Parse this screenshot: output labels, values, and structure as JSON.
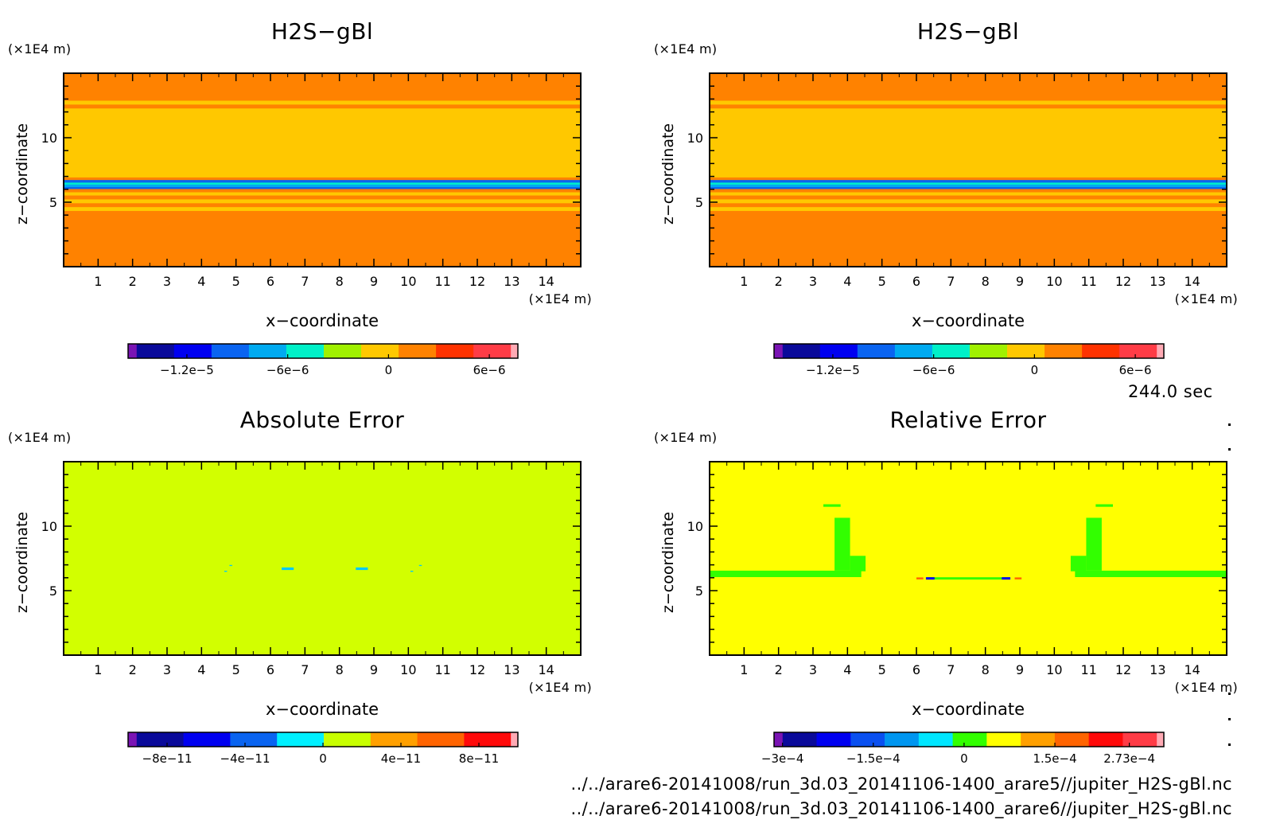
{
  "time_label": "244.0 sec",
  "footer": {
    "file1": "../../arare6-20141008/run_3d.03_20141106-1400_arare5//jupiter_H2S-gBl.nc",
    "file2": "../../arare6-20141008/run_3d.03_20141106-1400_arare6//jupiter_H2S-gBl.nc"
  },
  "chart_data": [
    {
      "type": "heatmap",
      "title": "H2S−gBl",
      "xlabel": "x−coordinate",
      "ylabel": "z−coordinate",
      "x_unit": "(×1E4 m)",
      "y_unit": "(×1E4 m)",
      "xlim": [
        0,
        15
      ],
      "ylim": [
        0,
        15
      ],
      "x_ticks": [
        1,
        2,
        3,
        4,
        5,
        6,
        7,
        8,
        9,
        10,
        11,
        12,
        13,
        14
      ],
      "y_ticks": [
        5,
        10
      ],
      "colorbar": {
        "colors": [
          "#7a14b4",
          "#0a0a9a",
          "#0000f0",
          "#0a64f0",
          "#00aaf0",
          "#00f0c8",
          "#a0f000",
          "#ffc800",
          "#ff8200",
          "#ff3200",
          "#ff3c46",
          "#ffaab4"
        ],
        "tick_labels": [
          "−1.2e−5",
          "−6e−6",
          "0",
          "6e−6"
        ],
        "tick_values": [
          -1.2e-05,
          -6e-06,
          0,
          6e-06
        ],
        "range": [
          -1.55e-05,
          7.7e-06
        ]
      },
      "bands": [
        {
          "z": [
            0,
            4.35
          ],
          "color": "#ff8200"
        },
        {
          "z": [
            4.35,
            4.65
          ],
          "color": "#ffc800"
        },
        {
          "z": [
            4.65,
            4.95
          ],
          "color": "#ff8200"
        },
        {
          "z": [
            4.95,
            5.25
          ],
          "color": "#ffc800"
        },
        {
          "z": [
            5.25,
            5.55
          ],
          "color": "#ff8200"
        },
        {
          "z": [
            5.55,
            5.8
          ],
          "color": "#ffc800"
        },
        {
          "z": [
            5.8,
            6.05
          ],
          "color": "#ff8200"
        },
        {
          "z": [
            6.05,
            6.2
          ],
          "color": "#0a64f0"
        },
        {
          "z": [
            6.2,
            6.4
          ],
          "color": "#00aaf0"
        },
        {
          "z": [
            6.4,
            6.55
          ],
          "color": "#00f0c8"
        },
        {
          "z": [
            6.55,
            6.75
          ],
          "color": "#0a64f0"
        },
        {
          "z": [
            6.75,
            6.95
          ],
          "color": "#ff8200"
        },
        {
          "z": [
            6.95,
            12.3
          ],
          "color": "#ffc800"
        },
        {
          "z": [
            12.3,
            12.6
          ],
          "color": "#ff8200"
        },
        {
          "z": [
            12.6,
            12.9
          ],
          "color": "#ffc800"
        },
        {
          "z": [
            12.9,
            15
          ],
          "color": "#ff8200"
        }
      ],
      "blobs": []
    },
    {
      "type": "heatmap",
      "title": "H2S−gBl",
      "xlabel": "x−coordinate",
      "ylabel": "z−coordinate",
      "x_unit": "(×1E4 m)",
      "y_unit": "(×1E4 m)",
      "xlim": [
        0,
        15
      ],
      "ylim": [
        0,
        15
      ],
      "x_ticks": [
        1,
        2,
        3,
        4,
        5,
        6,
        7,
        8,
        9,
        10,
        11,
        12,
        13,
        14
      ],
      "y_ticks": [
        5,
        10
      ],
      "colorbar": {
        "colors": [
          "#7a14b4",
          "#0a0a9a",
          "#0000f0",
          "#0a64f0",
          "#00aaf0",
          "#00f0c8",
          "#a0f000",
          "#ffc800",
          "#ff8200",
          "#ff3200",
          "#ff3c46",
          "#ffaab4"
        ],
        "tick_labels": [
          "−1.2e−5",
          "−6e−6",
          "0",
          "6e−6"
        ],
        "tick_values": [
          -1.2e-05,
          -6e-06,
          0,
          6e-06
        ],
        "range": [
          -1.55e-05,
          7.7e-06
        ]
      },
      "bands": [
        {
          "z": [
            0,
            4.35
          ],
          "color": "#ff8200"
        },
        {
          "z": [
            4.35,
            4.65
          ],
          "color": "#ffc800"
        },
        {
          "z": [
            4.65,
            4.95
          ],
          "color": "#ff8200"
        },
        {
          "z": [
            4.95,
            5.25
          ],
          "color": "#ffc800"
        },
        {
          "z": [
            5.25,
            5.55
          ],
          "color": "#ff8200"
        },
        {
          "z": [
            5.55,
            5.8
          ],
          "color": "#ffc800"
        },
        {
          "z": [
            5.8,
            6.05
          ],
          "color": "#ff8200"
        },
        {
          "z": [
            6.05,
            6.2
          ],
          "color": "#0a64f0"
        },
        {
          "z": [
            6.2,
            6.4
          ],
          "color": "#00aaf0"
        },
        {
          "z": [
            6.4,
            6.55
          ],
          "color": "#00f0c8"
        },
        {
          "z": [
            6.55,
            6.75
          ],
          "color": "#0a64f0"
        },
        {
          "z": [
            6.75,
            6.95
          ],
          "color": "#ff8200"
        },
        {
          "z": [
            6.95,
            12.3
          ],
          "color": "#ffc800"
        },
        {
          "z": [
            12.3,
            12.6
          ],
          "color": "#ff8200"
        },
        {
          "z": [
            12.6,
            12.9
          ],
          "color": "#ffc800"
        },
        {
          "z": [
            12.9,
            15
          ],
          "color": "#ff8200"
        }
      ],
      "blobs": []
    },
    {
      "type": "heatmap",
      "title": "Absolute Error",
      "xlabel": "x−coordinate",
      "ylabel": "z−coordinate",
      "x_unit": "(×1E4 m)",
      "y_unit": "(×1E4 m)",
      "xlim": [
        0,
        15
      ],
      "ylim": [
        0,
        15
      ],
      "x_ticks": [
        1,
        2,
        3,
        4,
        5,
        6,
        7,
        8,
        9,
        10,
        11,
        12,
        13,
        14
      ],
      "y_ticks": [
        5,
        10
      ],
      "colorbar": {
        "colors": [
          "#7a14b4",
          "#0a0a9a",
          "#0000f0",
          "#0a64f0",
          "#00f0ff",
          "#c8ff00",
          "#ffa000",
          "#ff6400",
          "#ff0a0a",
          "#ffaab4"
        ],
        "tick_labels": [
          "−8e−11",
          "−4e−11",
          "0",
          "4e−11",
          "8e−11"
        ],
        "tick_values": [
          -8e-11,
          -4e-11,
          0,
          4e-11,
          8e-11
        ],
        "range": [
          -1e-10,
          1e-10
        ]
      },
      "bands": [
        {
          "z": [
            0,
            15
          ],
          "color": "#d2ff00"
        }
      ],
      "blobs": [
        {
          "x": 6.5,
          "z": 6.7,
          "w": 0.35,
          "h": 0.2,
          "color": "#00c8ff"
        },
        {
          "x": 8.65,
          "z": 6.7,
          "w": 0.35,
          "h": 0.2,
          "color": "#00c8ff"
        },
        {
          "x": 4.7,
          "z": 6.5,
          "w": 0.08,
          "h": 0.08,
          "color": "#00c8ff"
        },
        {
          "x": 4.85,
          "z": 6.95,
          "w": 0.08,
          "h": 0.08,
          "color": "#00c8ff"
        },
        {
          "x": 10.1,
          "z": 6.5,
          "w": 0.08,
          "h": 0.08,
          "color": "#00c8ff"
        },
        {
          "x": 10.35,
          "z": 6.95,
          "w": 0.08,
          "h": 0.08,
          "color": "#00c8ff"
        }
      ]
    },
    {
      "type": "heatmap",
      "title": "Relative Error",
      "xlabel": "x−coordinate",
      "ylabel": "z−coordinate",
      "x_unit": "(×1E4 m)",
      "y_unit": "(×1E4 m)",
      "xlim": [
        0,
        15
      ],
      "ylim": [
        0,
        15
      ],
      "x_ticks": [
        1,
        2,
        3,
        4,
        5,
        6,
        7,
        8,
        9,
        10,
        11,
        12,
        13,
        14
      ],
      "y_ticks": [
        5,
        10
      ],
      "colorbar": {
        "colors": [
          "#7a14b4",
          "#0a0a9a",
          "#0000f0",
          "#0a50f0",
          "#0096f0",
          "#00e6ff",
          "#32ff00",
          "#ffff00",
          "#ffa000",
          "#ff6400",
          "#ff0a0a",
          "#ff3c46",
          "#ffaab4"
        ],
        "tick_labels": [
          "−3e−4",
          "−1.5e−4",
          "0",
          "1.5e−4",
          "2.73e−4"
        ],
        "tick_values": [
          -0.0003,
          -0.00015,
          0,
          0.00015,
          0.000273
        ],
        "range": [
          -0.000314,
          0.00033
        ]
      },
      "bands": [
        {
          "z": [
            0,
            15
          ],
          "color": "#ffff00"
        }
      ],
      "blobs": [
        {
          "x": 2.2,
          "z": 6.3,
          "w": 4.4,
          "h": 0.5,
          "color": "#32ff00"
        },
        {
          "x": 12.8,
          "z": 6.3,
          "w": 4.4,
          "h": 0.5,
          "color": "#32ff00"
        },
        {
          "x": 3.85,
          "z": 8.6,
          "w": 0.45,
          "h": 4.1,
          "color": "#32ff00"
        },
        {
          "x": 4.3,
          "z": 7.1,
          "w": 0.45,
          "h": 1.2,
          "color": "#32ff00"
        },
        {
          "x": 11.15,
          "z": 8.6,
          "w": 0.45,
          "h": 4.1,
          "color": "#32ff00"
        },
        {
          "x": 10.7,
          "z": 7.1,
          "w": 0.45,
          "h": 1.2,
          "color": "#32ff00"
        },
        {
          "x": 3.55,
          "z": 11.6,
          "w": 0.5,
          "h": 0.2,
          "color": "#32ff00"
        },
        {
          "x": 11.45,
          "z": 11.6,
          "w": 0.5,
          "h": 0.2,
          "color": "#32ff00"
        },
        {
          "x": 7.5,
          "z": 5.95,
          "w": 2.4,
          "h": 0.18,
          "color": "#32ff00"
        },
        {
          "x": 6.4,
          "z": 5.95,
          "w": 0.25,
          "h": 0.18,
          "color": "#0000f0"
        },
        {
          "x": 8.6,
          "z": 5.95,
          "w": 0.25,
          "h": 0.18,
          "color": "#0000f0"
        },
        {
          "x": 6.1,
          "z": 5.95,
          "w": 0.2,
          "h": 0.15,
          "color": "#ff6400"
        },
        {
          "x": 8.95,
          "z": 5.95,
          "w": 0.2,
          "h": 0.15,
          "color": "#ff6400"
        }
      ]
    }
  ]
}
